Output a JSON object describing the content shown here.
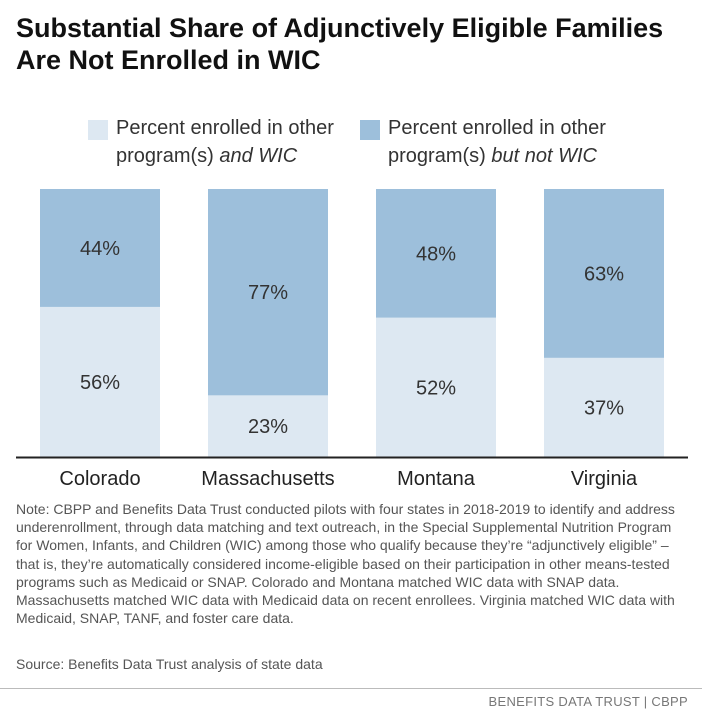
{
  "title": "Substantial Share of Adjunctively Eligible Families Are Not Enrolled in WIC",
  "legend": [
    {
      "line1": "Percent enrolled in other",
      "line2_plain": "program(s) ",
      "line2_italic": "and WIC",
      "color": "#dde8f2"
    },
    {
      "line1": "Percent enrolled in other",
      "line2_plain": "program(s) ",
      "line2_italic": "but not WIC",
      "color": "#9dbfdb"
    }
  ],
  "chart_data": {
    "type": "bar",
    "stacked": true,
    "categories": [
      "Colorado",
      "Massachusetts",
      "Montana",
      "Virginia"
    ],
    "series": [
      {
        "name": "Percent enrolled in other program(s) and WIC",
        "values": [
          56,
          23,
          52,
          37
        ],
        "labels": [
          "56%",
          "23%",
          "52%",
          "37%"
        ],
        "color": "#dde8f2"
      },
      {
        "name": "Percent enrolled in other program(s) but not WIC",
        "values": [
          44,
          77,
          48,
          63
        ],
        "labels": [
          "44%",
          "77%",
          "48%",
          "63%"
        ],
        "color": "#9dbfdb"
      }
    ],
    "ylim": [
      0,
      100
    ]
  },
  "note": "Note: CBPP and Benefits Data Trust conducted pilots with four states in 2018-2019 to identify and address underenrollment, through data matching and text outreach, in the Special Supplemental Nutrition Program for Women, Infants, and Children (WIC) among those who qualify because they’re “adjunctively eligible” – that is, they’re automatically considered income-eligible based on their participation in other means-tested programs such as Medicaid or SNAP. Colorado and Montana matched WIC data with SNAP data. Massachusetts matched WIC data with Medicaid data on recent enrollees. Virginia matched WIC data with Medicaid, SNAP, TANF, and foster care data.",
  "source": "Source: Benefits Data Trust analysis of state data",
  "credit": "BENEFITS DATA TRUST | CBPP"
}
